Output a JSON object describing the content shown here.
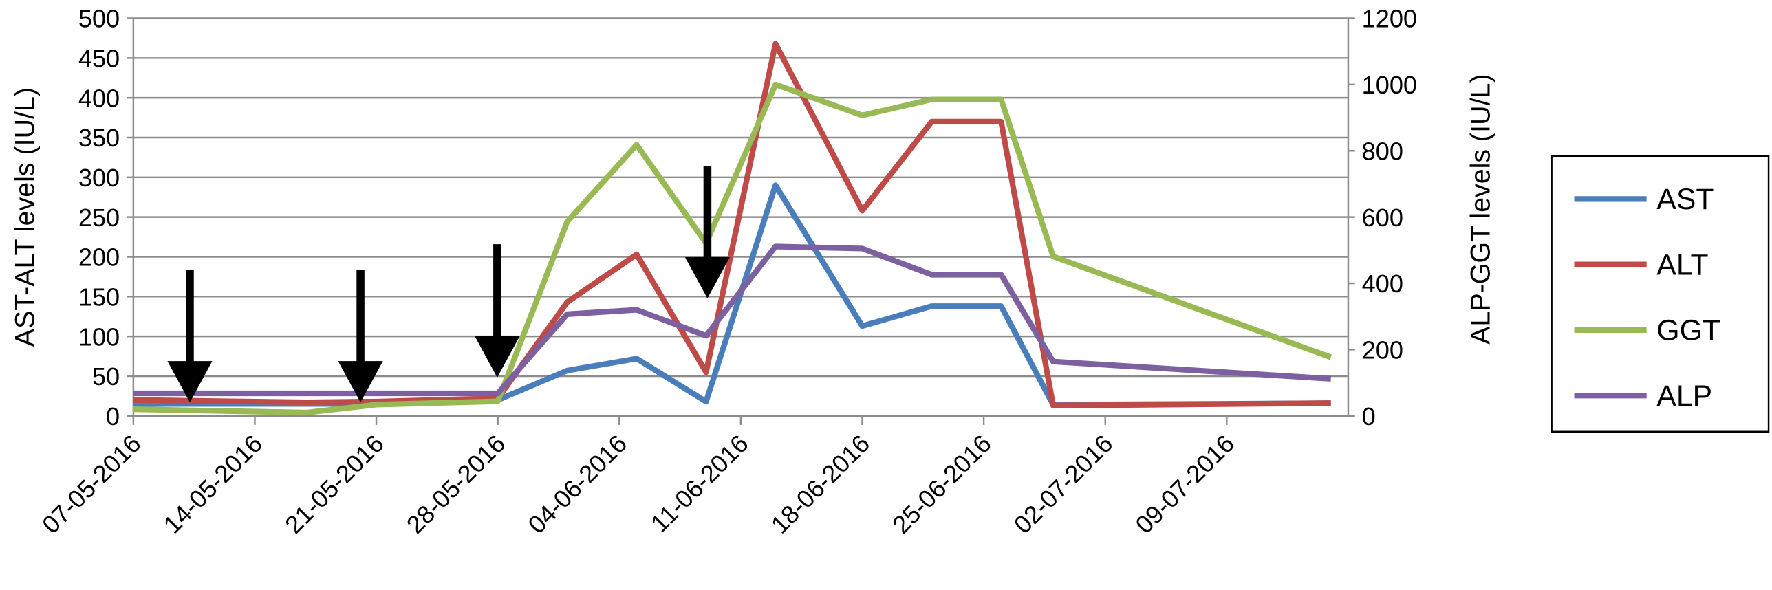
{
  "chart_data": {
    "type": "line",
    "y_label": "AST-ALT levels (IU/L)",
    "y2_label": "ALP-GGT levels (IU/L)",
    "x": [
      "07-05-2016",
      "17-05-2016",
      "21-05-2016",
      "28-05-2016",
      "01-06-2016",
      "05-06-2016",
      "09-06-2016",
      "13-06-2016",
      "18-06-2016",
      "22-06-2016",
      "26-06-2016",
      "29-06-2016",
      "15-07-2016"
    ],
    "xlim": [
      "07-05-2016",
      "16-07-2016"
    ],
    "xticks": [
      "07-05-2016",
      "14-05-2016",
      "21-05-2016",
      "28-05-2016",
      "04-06-2016",
      "11-06-2016",
      "18-06-2016",
      "25-06-2016",
      "02-07-2016",
      "09-07-2016"
    ],
    "ylim": [
      0,
      500
    ],
    "yticks": [
      0,
      50,
      100,
      150,
      200,
      250,
      300,
      350,
      400,
      450,
      500
    ],
    "y2lim": [
      0,
      1200
    ],
    "y2ticks": [
      0,
      200,
      400,
      600,
      800,
      1000,
      1200
    ],
    "grid": true,
    "legend": "right",
    "series": [
      {
        "name": "AST",
        "color": "#4a7ebb",
        "values": [
          15,
          15,
          15,
          20,
          57,
          72,
          18,
          290,
          113,
          138,
          138,
          14,
          16
        ]
      },
      {
        "name": "ALT",
        "color": "#be4b48",
        "values": [
          20,
          17,
          18,
          22,
          143,
          203,
          55,
          468,
          258,
          370,
          370,
          13,
          16
        ]
      },
      {
        "name": "GGT",
        "color": "#98b954",
        "axis": "y2",
        "values": [
          20,
          10,
          34,
          44,
          586,
          818,
          521,
          1000,
          907,
          955,
          955,
          481,
          177
        ]
      },
      {
        "name": "ALP",
        "color": "#7d60a0",
        "axis": "y2",
        "values": [
          68,
          68,
          68,
          68,
          307,
          320,
          242,
          511,
          505,
          426,
          426,
          164,
          112
        ]
      }
    ]
  }
}
